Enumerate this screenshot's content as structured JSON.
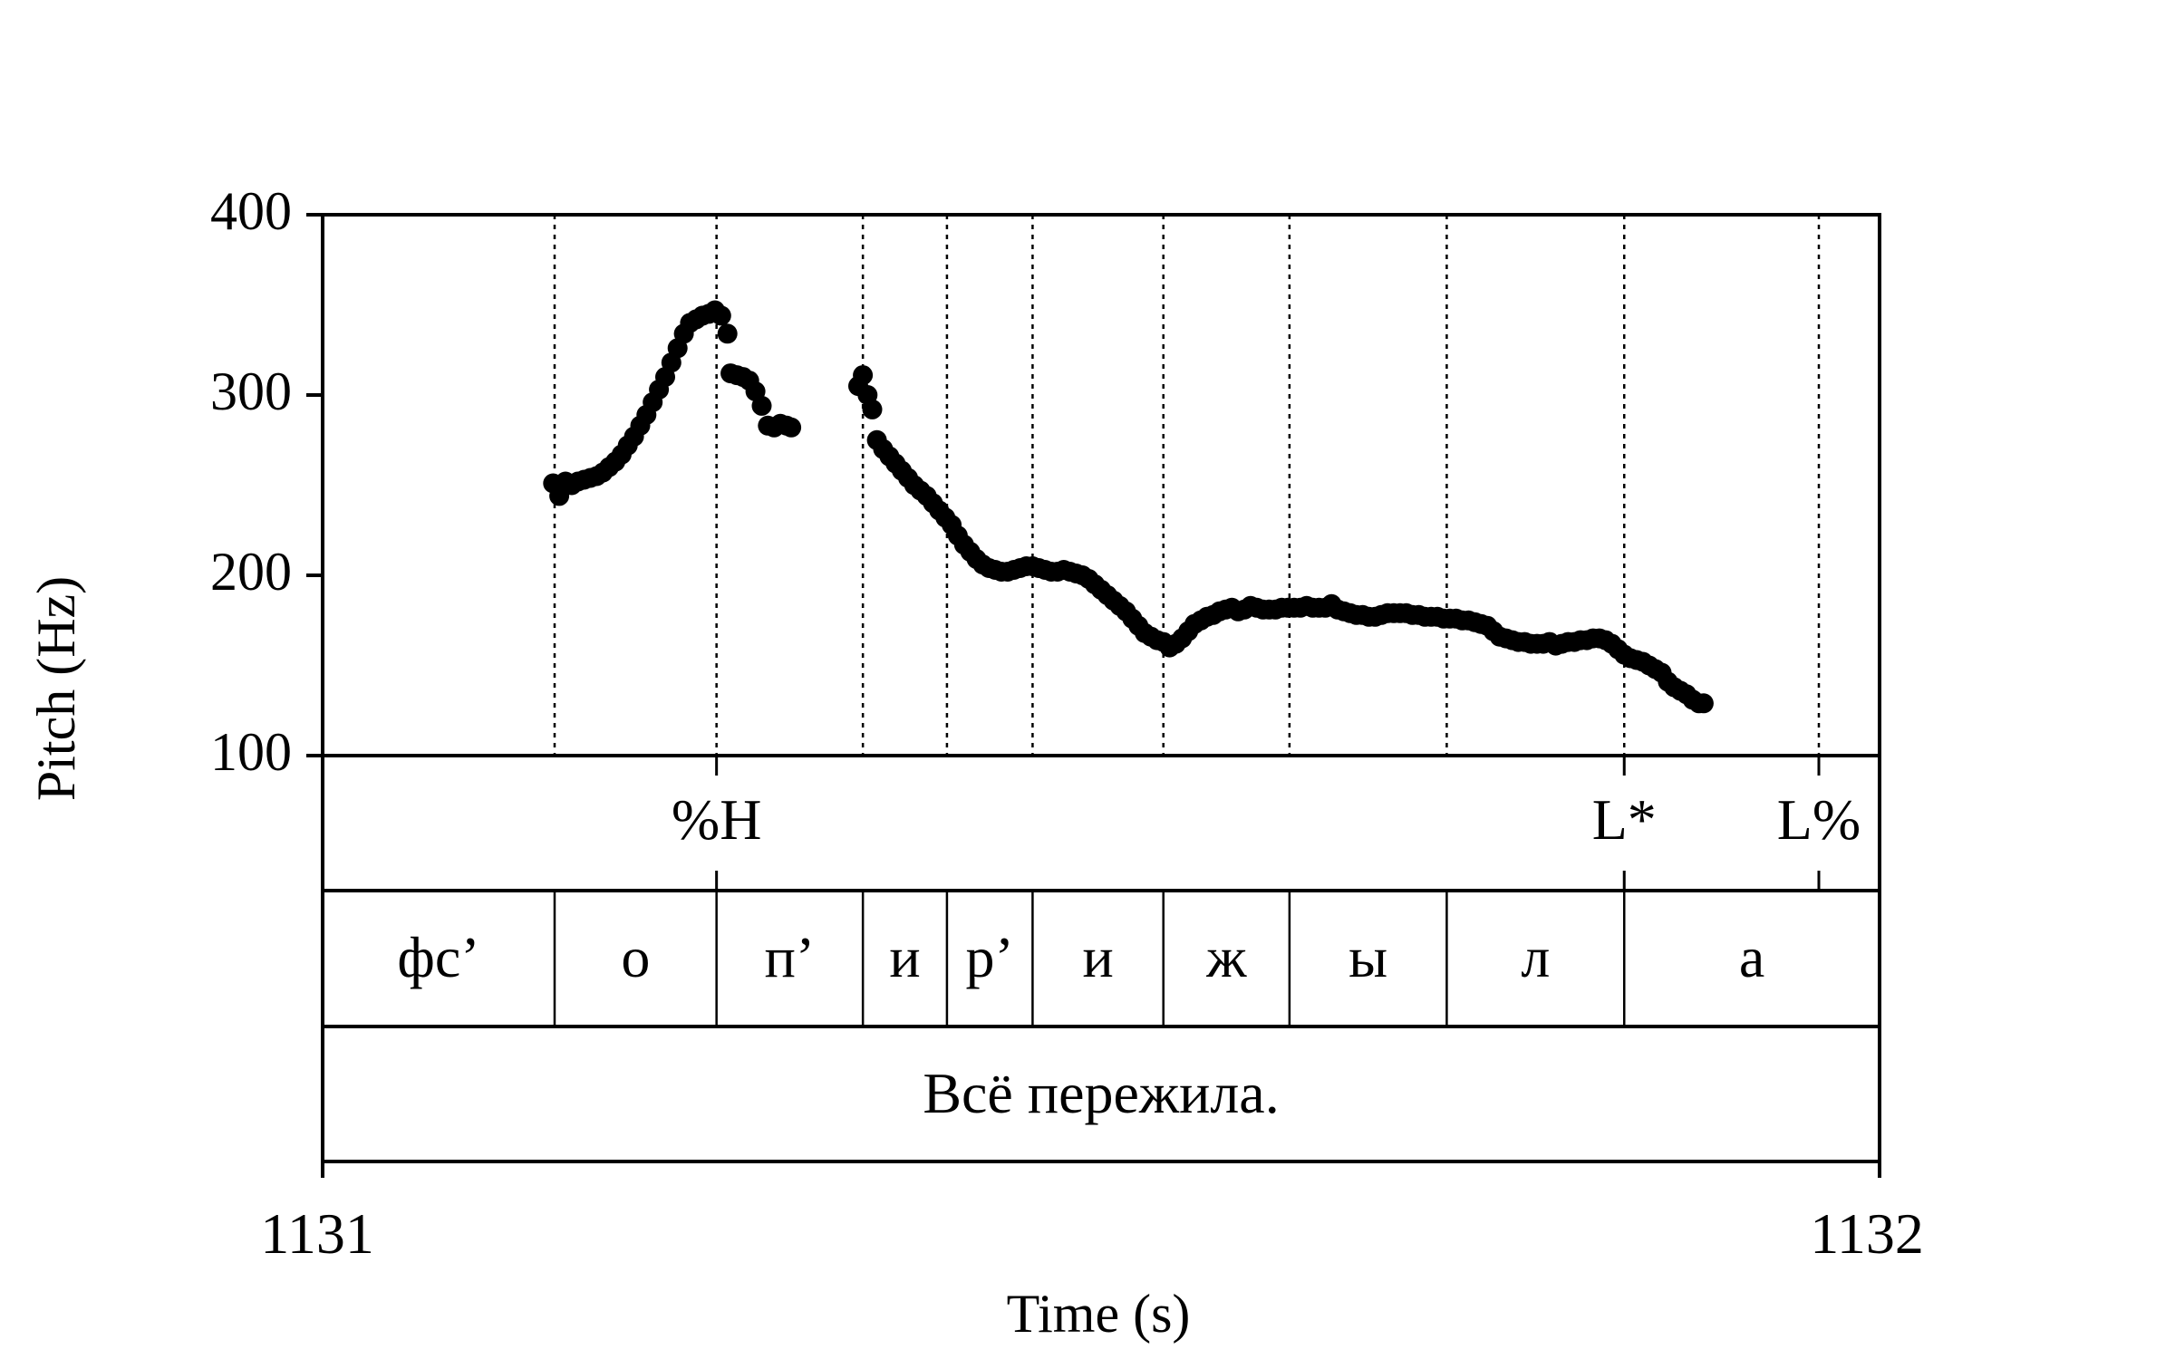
{
  "chart_data": {
    "type": "scatter",
    "title": "",
    "xlabel": "Time (s)",
    "ylabel": "Pitch (Hz)",
    "xlim": [
      1131,
      1132
    ],
    "ylim": [
      100,
      400
    ],
    "x_tick_labels": [
      "1131",
      "1132"
    ],
    "y_tick_labels": [
      "100",
      "200",
      "300",
      "400"
    ],
    "y_ticks": [
      100,
      200,
      300,
      400
    ],
    "grid": false,
    "series": [
      {
        "color": "#000000",
        "points": [
          [
            1131.148,
            251
          ],
          [
            1131.152,
            244
          ],
          [
            1131.156,
            252
          ],
          [
            1131.16,
            250
          ],
          [
            1131.164,
            252
          ],
          [
            1131.168,
            253
          ],
          [
            1131.172,
            254
          ],
          [
            1131.176,
            255
          ],
          [
            1131.18,
            257
          ],
          [
            1131.184,
            260
          ],
          [
            1131.188,
            263
          ],
          [
            1131.192,
            267
          ],
          [
            1131.196,
            272
          ],
          [
            1131.2,
            277
          ],
          [
            1131.204,
            283
          ],
          [
            1131.208,
            289
          ],
          [
            1131.212,
            296
          ],
          [
            1131.216,
            303
          ],
          [
            1131.22,
            310
          ],
          [
            1131.224,
            318
          ],
          [
            1131.228,
            326
          ],
          [
            1131.232,
            334
          ],
          [
            1131.236,
            340
          ],
          [
            1131.24,
            342
          ],
          [
            1131.244,
            344
          ],
          [
            1131.248,
            345
          ],
          [
            1131.252,
            347
          ],
          [
            1131.256,
            344
          ],
          [
            1131.26,
            334
          ],
          [
            1131.262,
            312
          ],
          [
            1131.266,
            311
          ],
          [
            1131.27,
            310
          ],
          [
            1131.274,
            308
          ],
          [
            1131.278,
            302
          ],
          [
            1131.282,
            294
          ],
          [
            1131.286,
            283
          ],
          [
            1131.29,
            282
          ],
          [
            1131.294,
            284
          ],
          [
            1131.298,
            283
          ],
          [
            1131.301,
            282
          ],
          [
            1131.344,
            305
          ],
          [
            1131.347,
            311
          ],
          [
            1131.35,
            300
          ],
          [
            1131.353,
            292
          ],
          [
            1131.356,
            275
          ],
          [
            1131.36,
            270
          ],
          [
            1131.364,
            266
          ],
          [
            1131.368,
            262
          ],
          [
            1131.372,
            258
          ],
          [
            1131.376,
            254
          ],
          [
            1131.38,
            250
          ],
          [
            1131.384,
            247
          ],
          [
            1131.388,
            244
          ],
          [
            1131.392,
            240
          ],
          [
            1131.396,
            236
          ],
          [
            1131.4,
            232
          ],
          [
            1131.404,
            228
          ],
          [
            1131.408,
            222
          ],
          [
            1131.412,
            217
          ],
          [
            1131.416,
            213
          ],
          [
            1131.42,
            209
          ],
          [
            1131.424,
            206
          ],
          [
            1131.428,
            204
          ],
          [
            1131.432,
            203
          ],
          [
            1131.436,
            202
          ],
          [
            1131.44,
            202
          ],
          [
            1131.444,
            203
          ],
          [
            1131.448,
            204
          ],
          [
            1131.452,
            205
          ],
          [
            1131.456,
            205
          ],
          [
            1131.46,
            204
          ],
          [
            1131.464,
            203
          ],
          [
            1131.468,
            202
          ],
          [
            1131.472,
            202
          ],
          [
            1131.476,
            203
          ],
          [
            1131.48,
            202
          ],
          [
            1131.484,
            201
          ],
          [
            1131.488,
            200
          ],
          [
            1131.492,
            198
          ],
          [
            1131.496,
            195
          ],
          [
            1131.5,
            192
          ],
          [
            1131.504,
            189
          ],
          [
            1131.508,
            186
          ],
          [
            1131.512,
            183
          ],
          [
            1131.516,
            180
          ],
          [
            1131.52,
            176
          ],
          [
            1131.524,
            172
          ],
          [
            1131.528,
            168
          ],
          [
            1131.532,
            166
          ],
          [
            1131.536,
            164
          ],
          [
            1131.54,
            163
          ],
          [
            1131.544,
            160
          ],
          [
            1131.548,
            162
          ],
          [
            1131.552,
            165
          ],
          [
            1131.556,
            169
          ],
          [
            1131.56,
            173
          ],
          [
            1131.564,
            175
          ],
          [
            1131.568,
            177
          ],
          [
            1131.572,
            178
          ],
          [
            1131.576,
            180
          ],
          [
            1131.58,
            181
          ],
          [
            1131.584,
            182
          ],
          [
            1131.588,
            180
          ],
          [
            1131.592,
            181
          ],
          [
            1131.596,
            183
          ],
          [
            1131.6,
            182
          ],
          [
            1131.604,
            181
          ],
          [
            1131.608,
            181
          ],
          [
            1131.612,
            181
          ],
          [
            1131.616,
            182
          ],
          [
            1131.62,
            182
          ],
          [
            1131.624,
            182
          ],
          [
            1131.628,
            182
          ],
          [
            1131.632,
            183
          ],
          [
            1131.636,
            182
          ],
          [
            1131.64,
            182
          ],
          [
            1131.644,
            182
          ],
          [
            1131.648,
            184
          ],
          [
            1131.652,
            181
          ],
          [
            1131.656,
            180
          ],
          [
            1131.66,
            179
          ],
          [
            1131.664,
            178
          ],
          [
            1131.668,
            178
          ],
          [
            1131.672,
            177
          ],
          [
            1131.676,
            177
          ],
          [
            1131.68,
            178
          ],
          [
            1131.684,
            179
          ],
          [
            1131.688,
            179
          ],
          [
            1131.692,
            179
          ],
          [
            1131.696,
            179
          ],
          [
            1131.7,
            178
          ],
          [
            1131.704,
            178
          ],
          [
            1131.708,
            177
          ],
          [
            1131.712,
            177
          ],
          [
            1131.716,
            177
          ],
          [
            1131.72,
            176
          ],
          [
            1131.724,
            176
          ],
          [
            1131.728,
            176
          ],
          [
            1131.732,
            175
          ],
          [
            1131.736,
            175
          ],
          [
            1131.74,
            174
          ],
          [
            1131.744,
            173
          ],
          [
            1131.748,
            172
          ],
          [
            1131.752,
            169
          ],
          [
            1131.756,
            166
          ],
          [
            1131.76,
            165
          ],
          [
            1131.764,
            164
          ],
          [
            1131.768,
            163
          ],
          [
            1131.772,
            163
          ],
          [
            1131.776,
            162
          ],
          [
            1131.78,
            162
          ],
          [
            1131.784,
            162
          ],
          [
            1131.788,
            163
          ],
          [
            1131.792,
            161
          ],
          [
            1131.796,
            162
          ],
          [
            1131.8,
            163
          ],
          [
            1131.804,
            163
          ],
          [
            1131.808,
            164
          ],
          [
            1131.812,
            164
          ],
          [
            1131.816,
            165
          ],
          [
            1131.82,
            165
          ],
          [
            1131.824,
            164
          ],
          [
            1131.828,
            162
          ],
          [
            1131.832,
            159
          ],
          [
            1131.836,
            156
          ],
          [
            1131.84,
            154
          ],
          [
            1131.844,
            153
          ],
          [
            1131.848,
            152
          ],
          [
            1131.852,
            150
          ],
          [
            1131.856,
            148
          ],
          [
            1131.86,
            146
          ],
          [
            1131.864,
            141
          ],
          [
            1131.868,
            138
          ],
          [
            1131.872,
            136
          ],
          [
            1131.876,
            134
          ],
          [
            1131.88,
            131
          ],
          [
            1131.884,
            129
          ],
          [
            1131.887,
            129
          ]
        ]
      }
    ],
    "dotted_boundaries": [
      1131.149,
      1131.253,
      1131.347,
      1131.401,
      1131.456,
      1131.54,
      1131.621,
      1131.722,
      1131.836,
      1131.961
    ],
    "tiers": [
      {
        "name": "tones",
        "points": [
          {
            "label": "%H",
            "time": 1131.253
          },
          {
            "label": "L*",
            "time": 1131.836
          },
          {
            "label": "L%",
            "time": 1131.961
          }
        ]
      },
      {
        "name": "segments",
        "intervals": [
          {
            "label": "фс’",
            "start": 1131.0,
            "end": 1131.149
          },
          {
            "label": "о",
            "start": 1131.149,
            "end": 1131.253
          },
          {
            "label": "п’",
            "start": 1131.253,
            "end": 1131.347
          },
          {
            "label": "и",
            "start": 1131.347,
            "end": 1131.401
          },
          {
            "label": "р’",
            "start": 1131.401,
            "end": 1131.456
          },
          {
            "label": "и",
            "start": 1131.456,
            "end": 1131.54
          },
          {
            "label": "ж",
            "start": 1131.54,
            "end": 1131.621
          },
          {
            "label": "ы",
            "start": 1131.621,
            "end": 1131.722
          },
          {
            "label": "л",
            "start": 1131.722,
            "end": 1131.836
          },
          {
            "label": "а",
            "start": 1131.836,
            "end": 1132.0
          }
        ]
      },
      {
        "name": "sentence",
        "intervals": [
          {
            "label": "Всё пережила.",
            "start": 1131.0,
            "end": 1132.0
          }
        ]
      }
    ]
  }
}
